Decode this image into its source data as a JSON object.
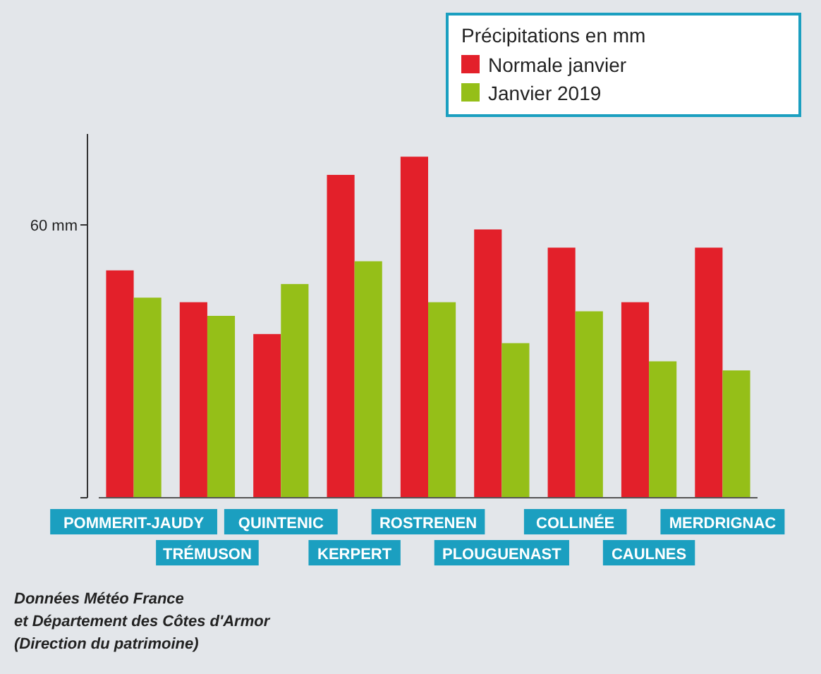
{
  "chart_data": {
    "type": "bar",
    "legend_title": "Précipitations en mm",
    "categories": [
      "POMMERIT-JAUDY",
      "TRÉMUSON",
      "QUINTENIC",
      "KERPERT",
      "ROSTRENEN",
      "PLOUGUENAST",
      "COLLINÉE",
      "CAULNES",
      "MERDRIGNAC"
    ],
    "series": [
      {
        "name": "Normale janvier",
        "color": "#e3202a",
        "values": [
          50,
          43,
          36,
          71,
          75,
          59,
          55,
          43,
          55
        ]
      },
      {
        "name": "Janvier 2019",
        "color": "#95bf18",
        "values": [
          44,
          40,
          47,
          52,
          43,
          34,
          41,
          30,
          28
        ]
      }
    ],
    "ylim": [
      0,
      80
    ],
    "yticks": [
      {
        "value": 0,
        "label": null
      },
      {
        "value": 60,
        "label": "60 mm"
      }
    ],
    "legend": "top right",
    "grid": false,
    "annotations": [
      "Données Météo France",
      "et Département des Côtes d'Armor",
      "(Direction du patrimoine)"
    ]
  }
}
